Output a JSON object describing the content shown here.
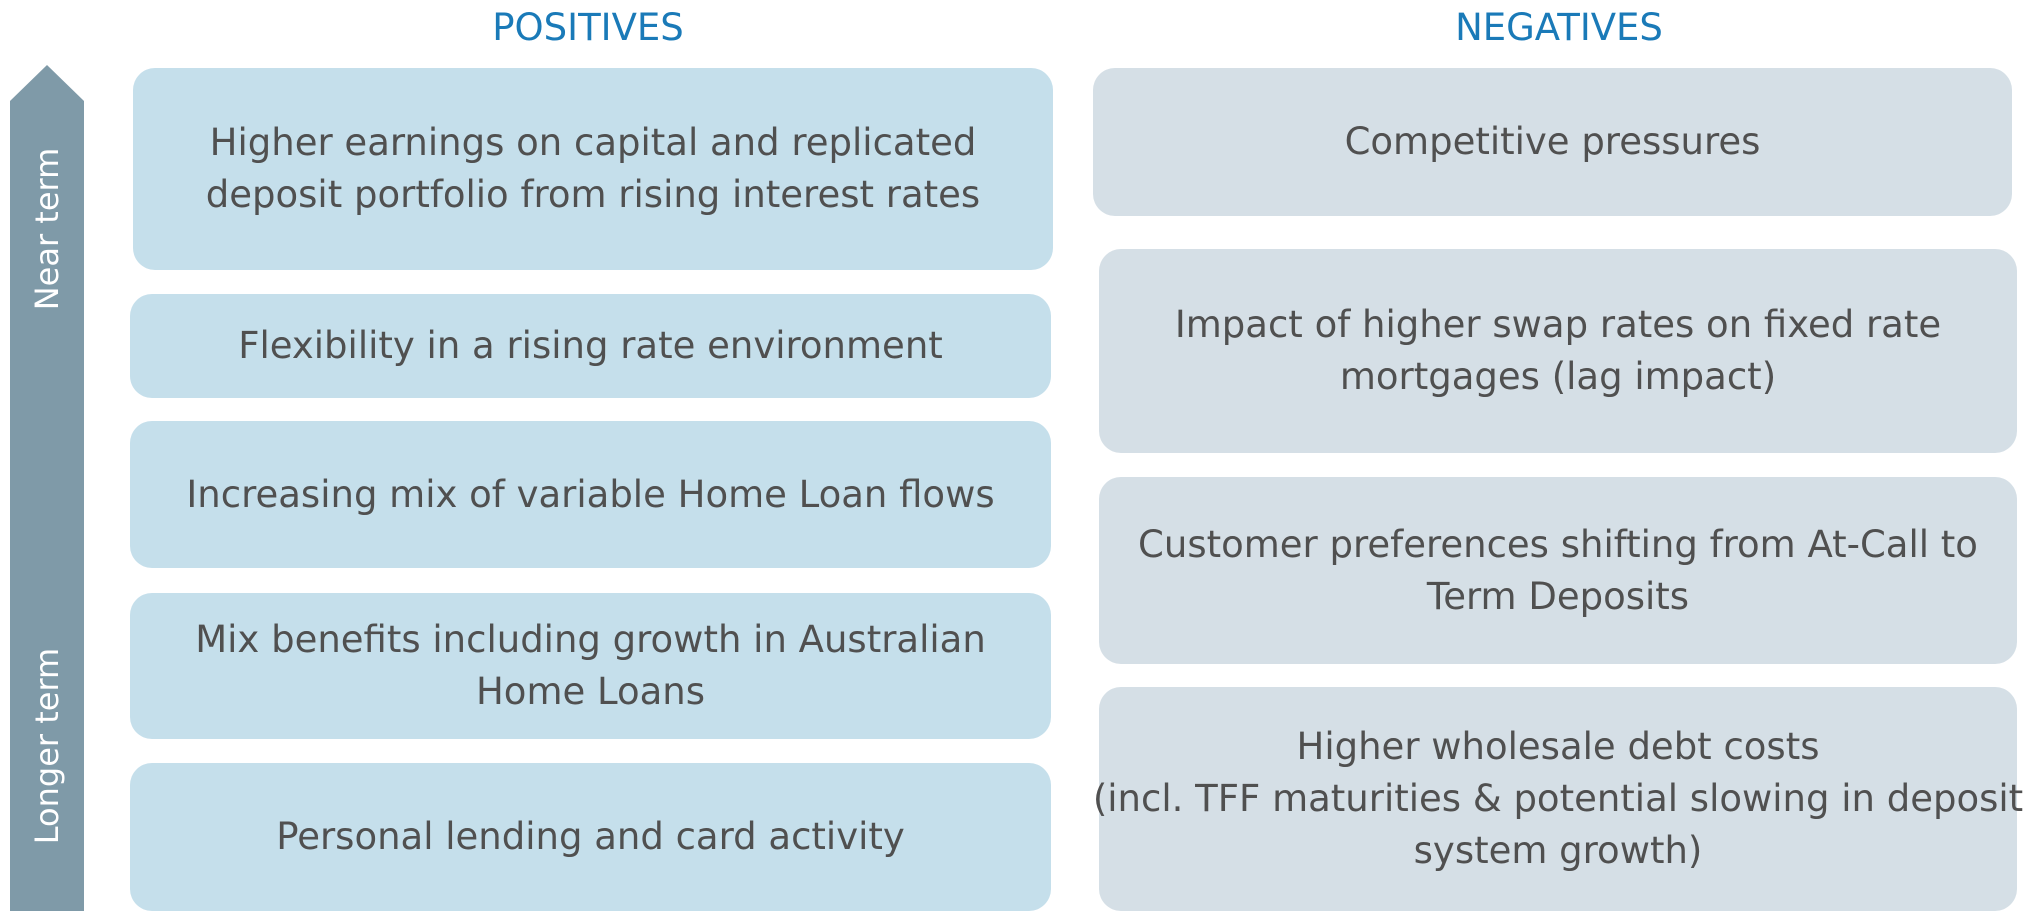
{
  "headers": {
    "positives": "POSITIVES",
    "negatives": "NEGATIVES"
  },
  "arrow": {
    "top_label": "Near term",
    "bottom_label": "Longer term"
  },
  "positives": [
    {
      "lines": [
        "Higher earnings on capital and replicated",
        "deposit portfolio from rising interest rates"
      ]
    },
    {
      "lines": [
        "Flexibility in a rising rate environment"
      ]
    },
    {
      "lines": [
        "Increasing mix of variable Home Loan flows"
      ]
    },
    {
      "lines": [
        "Mix benefits including growth in Australian",
        "Home Loans"
      ]
    },
    {
      "lines": [
        "Personal lending and card activity"
      ]
    }
  ],
  "negatives": [
    {
      "lines": [
        "Competitive pressures"
      ]
    },
    {
      "lines": [
        "Impact of higher swap rates on fixed rate",
        "mortgages (lag impact)"
      ]
    },
    {
      "lines": [
        "Customer preferences shifting from At-Call to",
        "Term Deposits"
      ]
    },
    {
      "lines": [
        "Higher wholesale debt costs",
        "(incl. TFF maturities & potential slowing in deposit",
        "system growth)"
      ]
    }
  ]
}
